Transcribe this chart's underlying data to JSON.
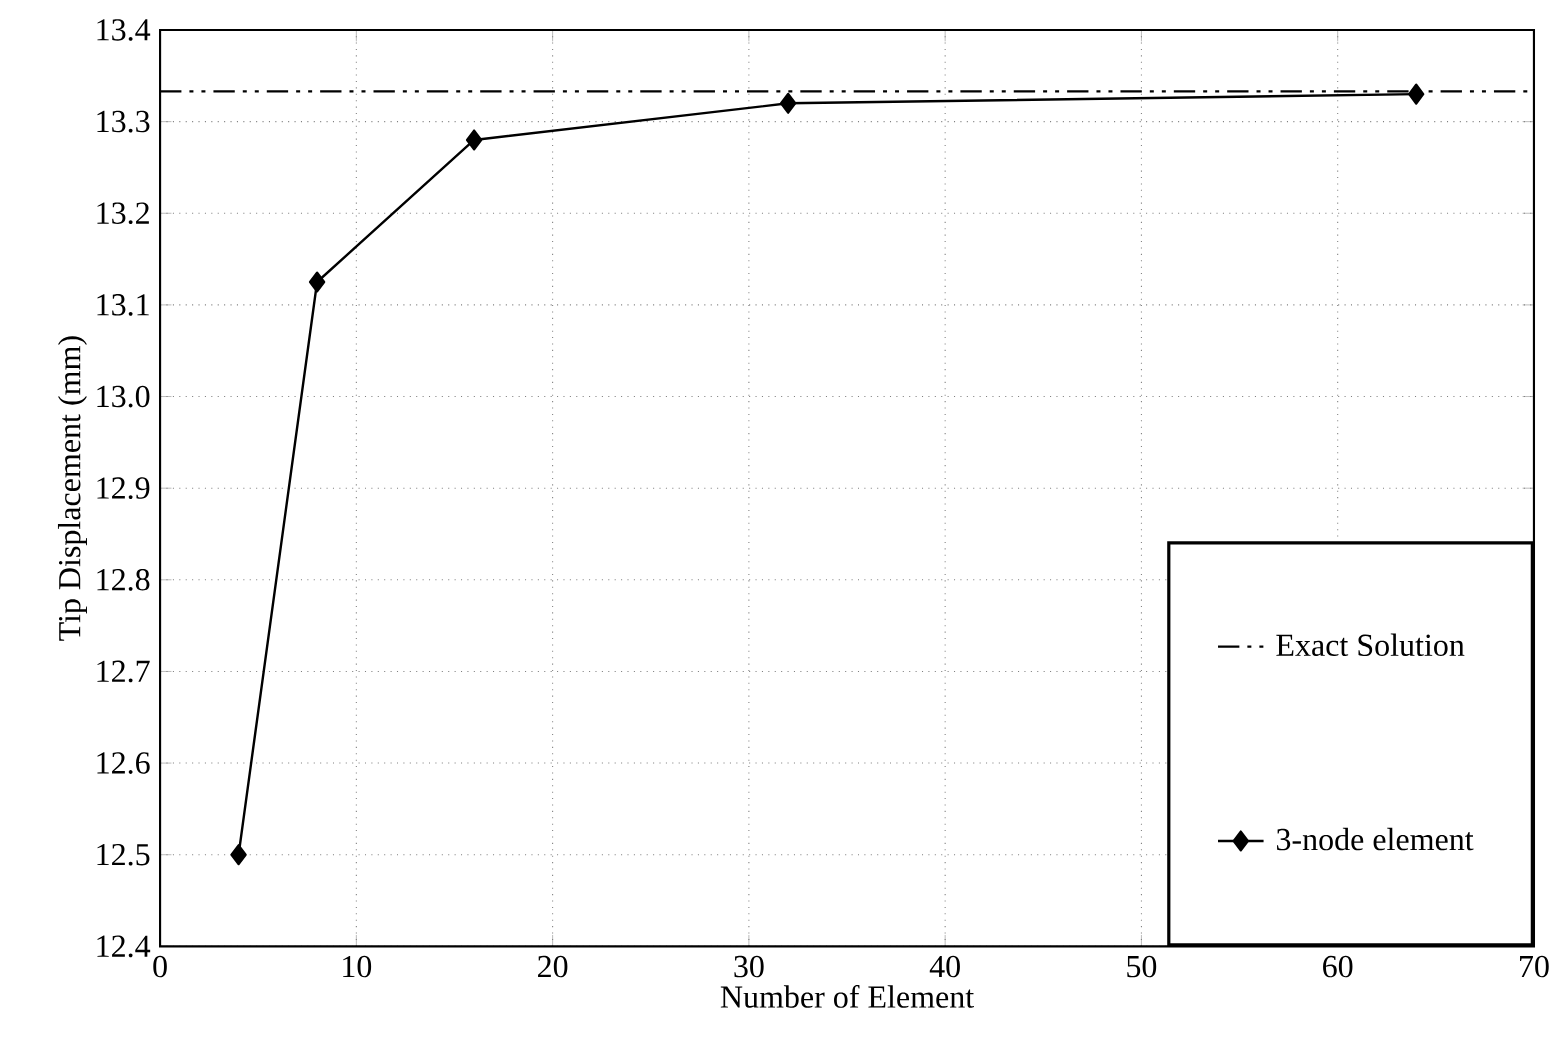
{
  "chart_data": {
    "type": "line",
    "xlabel": "Number of Element",
    "ylabel": "Tip Displacement (mm)",
    "xlim": [
      0,
      70
    ],
    "ylim": [
      12.4,
      13.4
    ],
    "xticks": [
      0,
      10,
      20,
      30,
      40,
      50,
      60,
      70
    ],
    "yticks": [
      {
        "value": 12.4,
        "label": "12.4"
      },
      {
        "value": 12.5,
        "label": "12.5"
      },
      {
        "value": 12.6,
        "label": "12.6"
      },
      {
        "value": 12.7,
        "label": "12.7"
      },
      {
        "value": 12.8,
        "label": "12.8"
      },
      {
        "value": 12.9,
        "label": "12.9"
      },
      {
        "value": 13.0,
        "label": "13.0"
      },
      {
        "value": 13.1,
        "label": "13.1"
      },
      {
        "value": 13.2,
        "label": "13.2"
      },
      {
        "value": 13.3,
        "label": "13.3"
      },
      {
        "value": 13.4,
        "label": "13.4"
      }
    ],
    "grid": true,
    "legend": "bottom right",
    "series": [
      {
        "name": "Exact Solution",
        "color": "#000000",
        "x": [
          0,
          70
        ],
        "values": [
          13.333,
          13.333
        ],
        "line_style": "dashdot",
        "marker": "none"
      },
      {
        "name": "3-node element",
        "color": "#000000",
        "x": [
          4,
          8,
          16,
          32,
          64
        ],
        "values": [
          12.5,
          13.125,
          13.28,
          13.32,
          13.33
        ],
        "line_style": "solid",
        "marker": "diamond"
      }
    ]
  }
}
